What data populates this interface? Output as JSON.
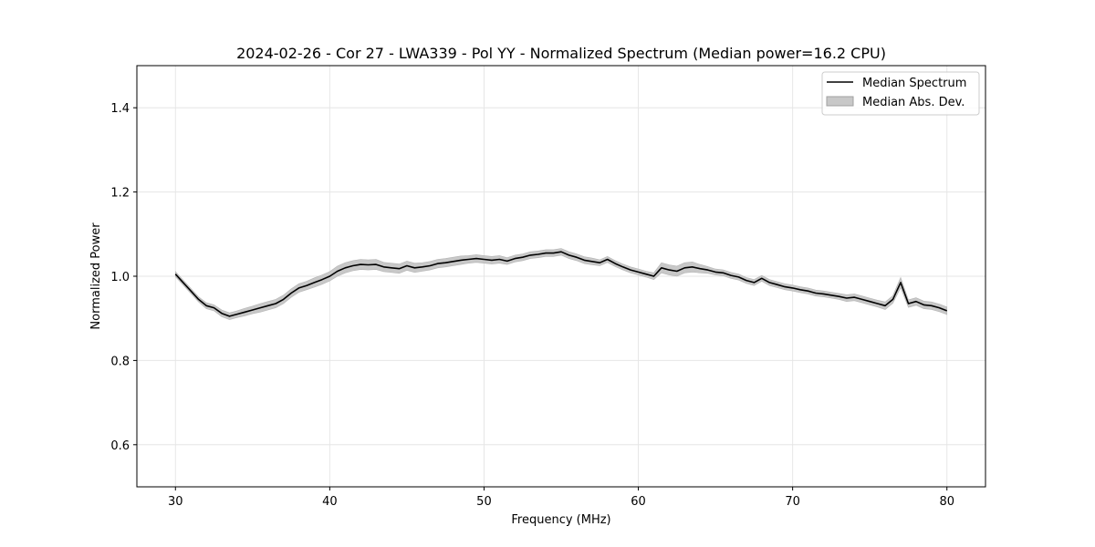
{
  "chart_data": {
    "type": "line",
    "title": "2024-02-26 - Cor 27 - LWA339 - Pol YY - Normalized Spectrum (Median power=16.2 CPU)",
    "xlabel": "Frequency (MHz)",
    "ylabel": "Normalized Power",
    "xlim": [
      27.5,
      82.5
    ],
    "ylim": [
      0.5,
      1.5
    ],
    "xticks": [
      30,
      40,
      50,
      60,
      70,
      80
    ],
    "yticks": [
      0.6,
      0.8,
      1.0,
      1.2,
      1.4
    ],
    "xtick_labels": [
      "30",
      "40",
      "50",
      "60",
      "70",
      "80"
    ],
    "ytick_labels": [
      "0.6",
      "0.8",
      "1.0",
      "1.2",
      "1.4"
    ],
    "grid": true,
    "legend_position": "top-right",
    "legend": [
      "Median Spectrum",
      "Median Abs. Dev."
    ],
    "series": [
      {
        "name": "Median Spectrum",
        "color": "#000000",
        "x": [
          30,
          30.5,
          31,
          31.5,
          32,
          32.5,
          33,
          33.5,
          34,
          34.5,
          35,
          35.5,
          36,
          36.5,
          37,
          37.5,
          38,
          38.5,
          39,
          39.5,
          40,
          40.5,
          41,
          41.5,
          42,
          42.5,
          43,
          43.5,
          44,
          44.5,
          45,
          45.5,
          46,
          46.5,
          47,
          47.5,
          48,
          48.5,
          49,
          49.5,
          50,
          50.5,
          51,
          51.5,
          52,
          52.5,
          53,
          53.5,
          54,
          54.5,
          55,
          55.5,
          56,
          56.5,
          57,
          57.5,
          58,
          58.5,
          59,
          59.5,
          60,
          60.5,
          61,
          61.5,
          62,
          62.5,
          63,
          63.5,
          64,
          64.5,
          65,
          65.5,
          66,
          66.5,
          67,
          67.5,
          68,
          68.5,
          69,
          69.5,
          70,
          70.5,
          71,
          71.5,
          72,
          72.5,
          73,
          73.5,
          74,
          74.5,
          75,
          75.5,
          76,
          76.5,
          77,
          77.5,
          78,
          78.5,
          79,
          79.5,
          80
        ],
        "values": [
          1.005,
          0.985,
          0.965,
          0.945,
          0.93,
          0.925,
          0.912,
          0.905,
          0.91,
          0.915,
          0.92,
          0.925,
          0.93,
          0.935,
          0.945,
          0.96,
          0.972,
          0.978,
          0.985,
          0.992,
          1.0,
          1.012,
          1.02,
          1.025,
          1.028,
          1.027,
          1.028,
          1.022,
          1.02,
          1.018,
          1.025,
          1.02,
          1.022,
          1.025,
          1.03,
          1.032,
          1.035,
          1.038,
          1.04,
          1.042,
          1.04,
          1.038,
          1.04,
          1.036,
          1.042,
          1.045,
          1.05,
          1.052,
          1.055,
          1.055,
          1.058,
          1.05,
          1.045,
          1.038,
          1.035,
          1.032,
          1.04,
          1.03,
          1.022,
          1.015,
          1.01,
          1.005,
          1.0,
          1.02,
          1.015,
          1.012,
          1.02,
          1.022,
          1.018,
          1.015,
          1.01,
          1.008,
          1.002,
          0.998,
          0.99,
          0.985,
          0.995,
          0.985,
          0.98,
          0.975,
          0.972,
          0.968,
          0.965,
          0.96,
          0.958,
          0.955,
          0.952,
          0.948,
          0.95,
          0.945,
          0.94,
          0.935,
          0.93,
          0.945,
          0.985,
          0.935,
          0.94,
          0.932,
          0.93,
          0.925,
          0.918
        ],
        "mad": [
          0.006,
          0.006,
          0.006,
          0.006,
          0.007,
          0.007,
          0.008,
          0.008,
          0.008,
          0.009,
          0.009,
          0.01,
          0.01,
          0.01,
          0.01,
          0.01,
          0.01,
          0.01,
          0.011,
          0.011,
          0.011,
          0.012,
          0.012,
          0.012,
          0.012,
          0.012,
          0.012,
          0.011,
          0.011,
          0.011,
          0.011,
          0.011,
          0.01,
          0.01,
          0.01,
          0.01,
          0.01,
          0.01,
          0.009,
          0.009,
          0.009,
          0.009,
          0.009,
          0.008,
          0.008,
          0.008,
          0.008,
          0.008,
          0.008,
          0.008,
          0.008,
          0.008,
          0.008,
          0.008,
          0.008,
          0.007,
          0.007,
          0.007,
          0.007,
          0.007,
          0.007,
          0.007,
          0.008,
          0.012,
          0.012,
          0.012,
          0.012,
          0.012,
          0.01,
          0.008,
          0.007,
          0.007,
          0.007,
          0.007,
          0.007,
          0.007,
          0.007,
          0.007,
          0.007,
          0.007,
          0.007,
          0.007,
          0.007,
          0.007,
          0.007,
          0.007,
          0.007,
          0.008,
          0.008,
          0.008,
          0.008,
          0.008,
          0.009,
          0.009,
          0.012,
          0.009,
          0.009,
          0.009,
          0.009,
          0.009,
          0.009
        ]
      }
    ]
  }
}
